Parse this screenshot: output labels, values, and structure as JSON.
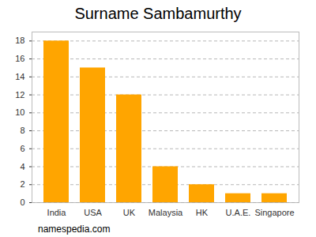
{
  "chart_data": {
    "type": "bar",
    "title": "Surname Sambamurthy",
    "caption": "namespedia.com",
    "categories": [
      "India",
      "USA",
      "UK",
      "Malaysia",
      "HK",
      "U.A.E.",
      "Singapore"
    ],
    "values": [
      18,
      15,
      12,
      4,
      2,
      1,
      1
    ],
    "color": "#ffa500",
    "ylim": [
      0,
      19
    ],
    "yticks": [
      0,
      2,
      4,
      6,
      8,
      10,
      12,
      14,
      16,
      18
    ],
    "grid": true
  }
}
